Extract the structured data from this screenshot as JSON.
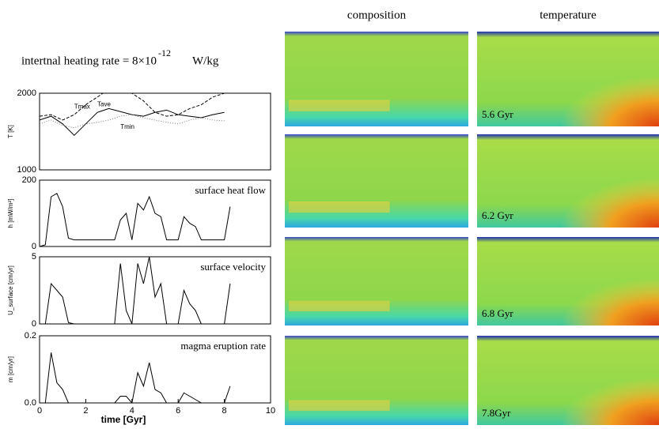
{
  "figure": {
    "heading": "intertnal heating rate = 8×10",
    "heading_exp": "-12",
    "heading_unit": "W/kg",
    "columns": [
      "composition",
      "temperature"
    ],
    "times": [
      "5.6 Gyr",
      "6.2 Gyr",
      "6.8 Gyr",
      "7.8Gyr"
    ]
  },
  "chart_data": [
    {
      "type": "line",
      "ylabel": "T [K]",
      "ylim": [
        1000,
        2000
      ],
      "yticks": [
        1000,
        2000
      ],
      "xlim": [
        0,
        10
      ],
      "x": [
        0,
        0.5,
        1,
        1.5,
        2,
        2.5,
        3,
        3.5,
        4,
        4.5,
        5,
        5.5,
        6,
        6.5,
        7,
        7.5,
        8
      ],
      "series": [
        {
          "name": "Tmax",
          "color": "#000",
          "style": "dashed",
          "values": [
            1700,
            1720,
            1650,
            1720,
            1850,
            1950,
            2050,
            2100,
            2000,
            1900,
            1750,
            1700,
            1720,
            1800,
            1850,
            1950,
            2000
          ]
        },
        {
          "name": "Tave",
          "color": "#000",
          "style": "solid",
          "values": [
            1650,
            1700,
            1600,
            1450,
            1600,
            1750,
            1800,
            1760,
            1720,
            1700,
            1750,
            1780,
            1720,
            1700,
            1680,
            1720,
            1750
          ]
        },
        {
          "name": "Tmin",
          "color": "#777",
          "style": "dotted",
          "values": [
            1600,
            1650,
            1580,
            1550,
            1600,
            1620,
            1650,
            1700,
            1720,
            1680,
            1650,
            1620,
            1600,
            1650,
            1680,
            1650,
            1640
          ]
        }
      ]
    },
    {
      "type": "line",
      "ylabel": "h [mW/m²]",
      "annotation": "surface heat flow",
      "ylim": [
        0,
        200
      ],
      "yticks": [
        0,
        200
      ],
      "xlim": [
        0,
        10
      ],
      "x": [
        0,
        0.25,
        0.5,
        0.75,
        1,
        1.25,
        1.5,
        1.75,
        2,
        2.25,
        2.5,
        2.75,
        3,
        3.25,
        3.5,
        3.75,
        4,
        4.25,
        4.5,
        4.75,
        5,
        5.25,
        5.5,
        5.75,
        6,
        6.25,
        6.5,
        6.75,
        7,
        7.25,
        7.5,
        7.75,
        8,
        8.25
      ],
      "series": [
        {
          "color": "#000",
          "style": "solid",
          "values": [
            0,
            5,
            150,
            160,
            120,
            25,
            20,
            20,
            20,
            20,
            20,
            20,
            20,
            20,
            80,
            100,
            20,
            130,
            110,
            150,
            100,
            90,
            20,
            20,
            20,
            90,
            70,
            60,
            20,
            20,
            20,
            20,
            20,
            120
          ]
        }
      ]
    },
    {
      "type": "line",
      "ylabel": "U_surface [cm/yr]",
      "annotation": "surface velocity",
      "ylim": [
        0,
        5
      ],
      "yticks": [
        0,
        5
      ],
      "xlim": [
        0,
        10
      ],
      "x": [
        0,
        0.25,
        0.5,
        0.75,
        1,
        1.25,
        1.5,
        1.75,
        2,
        2.25,
        2.5,
        2.75,
        3,
        3.25,
        3.5,
        3.75,
        4,
        4.25,
        4.5,
        4.75,
        5,
        5.25,
        5.5,
        5.75,
        6,
        6.25,
        6.5,
        6.75,
        7,
        7.25,
        7.5,
        7.75,
        8,
        8.25
      ],
      "series": [
        {
          "color": "#000",
          "style": "solid",
          "values": [
            0,
            0,
            3,
            2.5,
            2,
            0.1,
            0,
            0,
            0,
            0,
            0,
            0,
            0,
            0,
            4.5,
            1,
            0,
            4.5,
            3,
            5,
            2,
            3,
            0,
            0,
            0,
            2.5,
            1.5,
            1,
            0,
            0,
            0,
            0,
            0,
            3
          ]
        }
      ]
    },
    {
      "type": "line",
      "ylabel": "m [cm/yr]",
      "annotation": "magma eruption rate",
      "ylim": [
        0,
        0.2
      ],
      "yticks": [
        {
          "value": 0,
          "label": "0.0"
        },
        {
          "value": 0.2,
          "label": "0.2"
        }
      ],
      "xlim": [
        0,
        10
      ],
      "xticks": [
        0,
        2,
        4,
        6,
        8,
        10
      ],
      "xlabel": "time [Gyr]",
      "x": [
        0,
        0.25,
        0.5,
        0.75,
        1,
        1.25,
        1.5,
        1.75,
        2,
        2.25,
        2.5,
        2.75,
        3,
        3.25,
        3.5,
        3.75,
        4,
        4.25,
        4.5,
        4.75,
        5,
        5.25,
        5.5,
        5.75,
        6,
        6.25,
        6.5,
        6.75,
        7,
        7.25,
        7.5,
        7.75,
        8,
        8.25
      ],
      "series": [
        {
          "color": "#000",
          "style": "solid",
          "values": [
            0,
            0,
            0.15,
            0.06,
            0.04,
            0,
            0,
            0,
            0,
            0,
            0,
            0,
            0,
            0,
            0.02,
            0.02,
            0,
            0.09,
            0.05,
            0.12,
            0.04,
            0.03,
            0,
            0,
            0,
            0.03,
            0.02,
            0.01,
            0,
            0,
            0,
            0,
            0,
            0.05
          ]
        }
      ]
    }
  ]
}
